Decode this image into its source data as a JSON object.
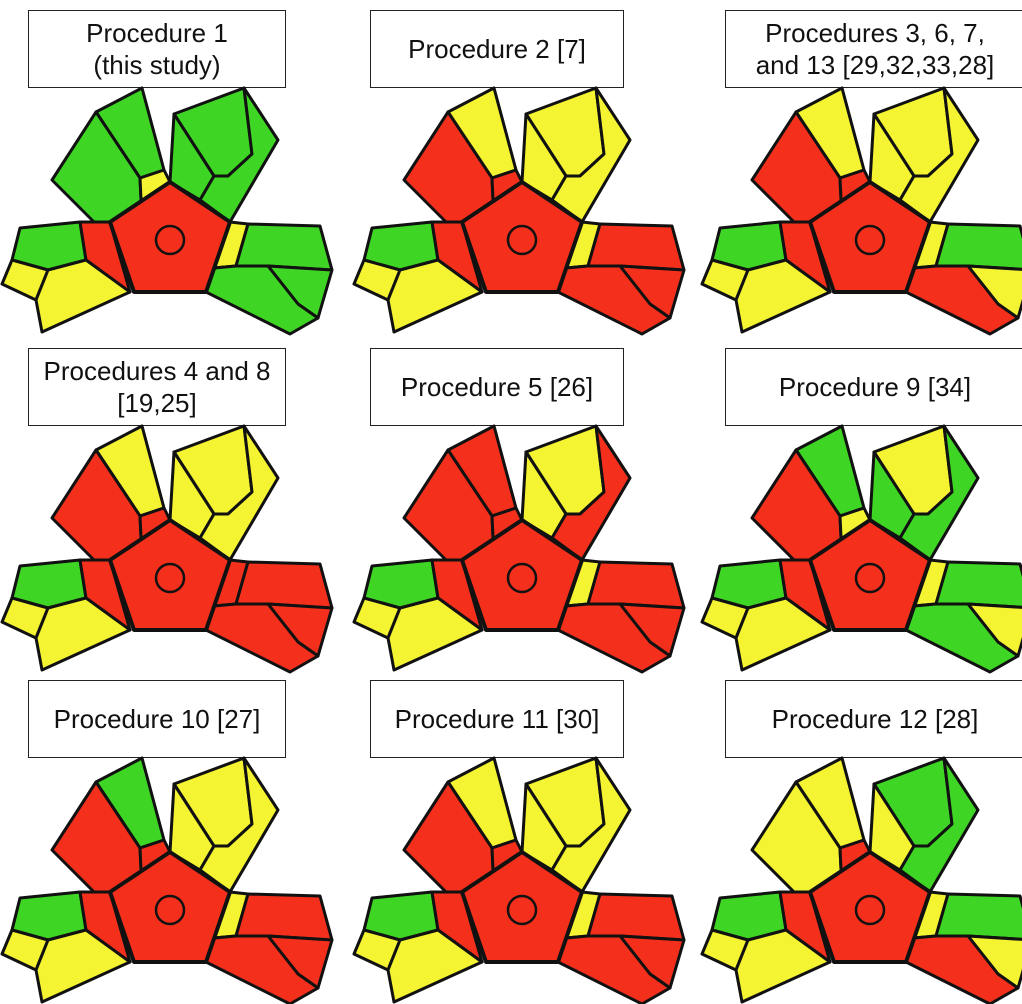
{
  "colors": {
    "red": "#f4301c",
    "yellow": "#f4f432",
    "green": "#3fd524",
    "outline": "#111111"
  },
  "panels": [
    {
      "label_lines": [
        "Procedure 1",
        "(this study)"
      ],
      "regions": {
        "left_a": "green",
        "left_b": "green",
        "left_c": "yellow",
        "right_a": "green",
        "right_b": "green",
        "right_c": "green",
        "bl_a": "green",
        "bl_b": "red",
        "bl_c": "yellow",
        "bl_d": "yellow",
        "br_a": "yellow",
        "br_b": "green",
        "br_c": "green",
        "br_d": "green"
      }
    },
    {
      "label_lines": [
        "Procedure 2 [7]"
      ],
      "regions": {
        "left_a": "yellow",
        "left_b": "red",
        "left_c": "red",
        "right_a": "yellow",
        "right_b": "yellow",
        "right_c": "yellow",
        "bl_a": "green",
        "bl_b": "red",
        "bl_c": "yellow",
        "bl_d": "yellow",
        "br_a": "yellow",
        "br_b": "red",
        "br_c": "red",
        "br_d": "red"
      }
    },
    {
      "label_lines": [
        "Procedures 3, 6, 7,",
        "and 13 [29,32,33,28]"
      ],
      "regions": {
        "left_a": "yellow",
        "left_b": "red",
        "left_c": "red",
        "right_a": "yellow",
        "right_b": "yellow",
        "right_c": "yellow",
        "bl_a": "green",
        "bl_b": "red",
        "bl_c": "yellow",
        "bl_d": "yellow",
        "br_a": "yellow",
        "br_b": "green",
        "br_c": "yellow",
        "br_d": "red"
      }
    },
    {
      "label_lines": [
        "Procedures 4 and 8",
        "[19,25]"
      ],
      "regions": {
        "left_a": "yellow",
        "left_b": "red",
        "left_c": "red",
        "right_a": "yellow",
        "right_b": "yellow",
        "right_c": "yellow",
        "bl_a": "green",
        "bl_b": "red",
        "bl_c": "yellow",
        "bl_d": "yellow",
        "br_a": "red",
        "br_b": "red",
        "br_c": "red",
        "br_d": "red"
      }
    },
    {
      "label_lines": [
        "Procedure 5 [26]"
      ],
      "regions": {
        "left_a": "red",
        "left_b": "red",
        "left_c": "red",
        "right_a": "yellow",
        "right_b": "yellow",
        "right_c": "red",
        "bl_a": "green",
        "bl_b": "red",
        "bl_c": "yellow",
        "bl_d": "yellow",
        "br_a": "yellow",
        "br_b": "red",
        "br_c": "red",
        "br_d": "red"
      }
    },
    {
      "label_lines": [
        "Procedure 9 [34]"
      ],
      "regions": {
        "left_a": "green",
        "left_b": "red",
        "left_c": "yellow",
        "right_a": "yellow",
        "right_b": "green",
        "right_c": "green",
        "bl_a": "green",
        "bl_b": "red",
        "bl_c": "yellow",
        "bl_d": "yellow",
        "br_a": "yellow",
        "br_b": "green",
        "br_c": "yellow",
        "br_d": "green"
      }
    },
    {
      "label_lines": [
        "Procedure 10 [27]"
      ],
      "regions": {
        "left_a": "green",
        "left_b": "red",
        "left_c": "red",
        "right_a": "yellow",
        "right_b": "yellow",
        "right_c": "yellow",
        "bl_a": "green",
        "bl_b": "red",
        "bl_c": "yellow",
        "bl_d": "yellow",
        "br_a": "yellow",
        "br_b": "red",
        "br_c": "red",
        "br_d": "red"
      }
    },
    {
      "label_lines": [
        "Procedure 11 [30]"
      ],
      "regions": {
        "left_a": "yellow",
        "left_b": "red",
        "left_c": "red",
        "right_a": "yellow",
        "right_b": "yellow",
        "right_c": "yellow",
        "bl_a": "green",
        "bl_b": "red",
        "bl_c": "yellow",
        "bl_d": "yellow",
        "br_a": "yellow",
        "br_b": "red",
        "br_c": "red",
        "br_d": "red"
      }
    },
    {
      "label_lines": [
        "Procedure 12 [28]"
      ],
      "regions": {
        "left_a": "yellow",
        "left_b": "yellow",
        "left_c": "red",
        "right_a": "green",
        "right_b": "yellow",
        "right_c": "green",
        "bl_a": "green",
        "bl_b": "red",
        "bl_c": "yellow",
        "bl_d": "yellow",
        "br_a": "yellow",
        "br_b": "green",
        "br_c": "yellow",
        "br_d": "red"
      }
    }
  ]
}
